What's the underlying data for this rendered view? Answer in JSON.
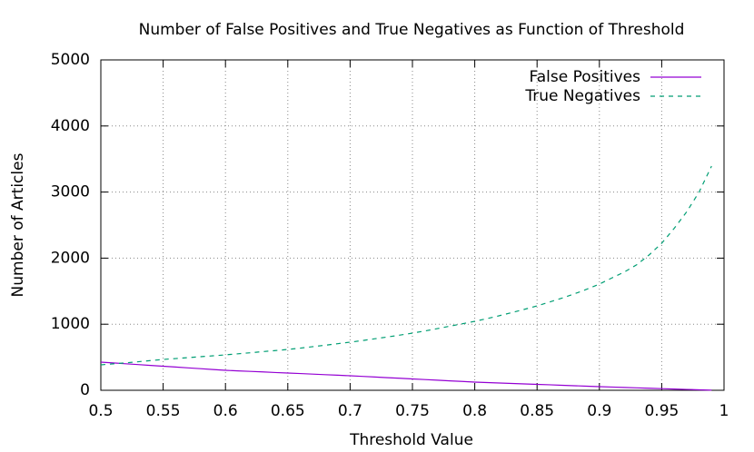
{
  "chart_data": {
    "type": "line",
    "title": "Number of False Positives and True Negatives as Function of Threshold",
    "x_label": "Threshold Value",
    "y_label": "Number of Articles",
    "x": [
      0.5,
      0.51,
      0.52,
      0.53,
      0.54,
      0.55,
      0.56,
      0.57,
      0.58,
      0.59,
      0.6,
      0.61,
      0.62,
      0.63,
      0.64,
      0.65,
      0.66,
      0.67,
      0.68,
      0.69,
      0.7,
      0.71,
      0.72,
      0.73,
      0.74,
      0.75,
      0.76,
      0.77,
      0.78,
      0.79,
      0.8,
      0.81,
      0.82,
      0.83,
      0.84,
      0.85,
      0.86,
      0.87,
      0.88,
      0.89,
      0.9,
      0.91,
      0.92,
      0.93,
      0.94,
      0.95,
      0.96,
      0.97,
      0.98,
      0.99
    ],
    "series": [
      {
        "name": "False Positives",
        "color": "#9400d3",
        "dashed": false,
        "values": [
          426,
          414,
          401,
          389,
          376,
          364,
          352,
          339,
          327,
          314,
          302,
          294,
          286,
          278,
          269,
          261,
          253,
          245,
          236,
          228,
          220,
          210,
          201,
          191,
          182,
          172,
          162,
          153,
          143,
          134,
          124,
          117,
          110,
          103,
          96,
          89,
          83,
          76,
          69,
          62,
          55,
          49,
          43,
          37,
          31,
          25,
          19,
          13,
          7,
          2
        ]
      },
      {
        "name": "True Negatives",
        "color": "#009e73",
        "dashed": true,
        "values": [
          385,
          400,
          415,
          432,
          450,
          467,
          480,
          494,
          508,
          522,
          536,
          552,
          568,
          585,
          601,
          618,
          638,
          660,
          682,
          705,
          728,
          753,
          780,
          807,
          835,
          865,
          898,
          933,
          970,
          1006,
          1044,
          1085,
          1130,
          1177,
          1226,
          1277,
          1335,
          1395,
          1460,
          1530,
          1607,
          1700,
          1790,
          1900,
          2050,
          2225,
          2450,
          2700,
          3000,
          3393
        ]
      }
    ],
    "xlim": [
      0.5,
      1
    ],
    "xticks": [
      0.5,
      0.55,
      0.6,
      0.65,
      0.7,
      0.75,
      0.8,
      0.85,
      0.9,
      0.95,
      1
    ],
    "ylim": [
      0,
      5000
    ],
    "yticks": [
      0,
      1000,
      2000,
      3000,
      4000,
      5000
    ],
    "grid": true,
    "legend": "top-right"
  }
}
